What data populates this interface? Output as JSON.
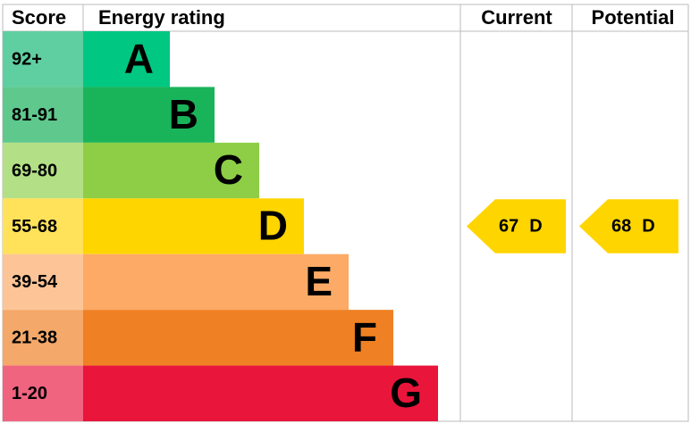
{
  "header": {
    "score": "Score",
    "rating": "Energy rating",
    "current": "Current",
    "potential": "Potential"
  },
  "bands": [
    {
      "score": "92+",
      "letter": "A",
      "color": "#00c781",
      "score_color": "#5fcfa2"
    },
    {
      "score": "81-91",
      "letter": "B",
      "color": "#19b459",
      "score_color": "#5ec88d"
    },
    {
      "score": "69-80",
      "letter": "C",
      "color": "#8dce46",
      "score_color": "#b3e086"
    },
    {
      "score": "55-68",
      "letter": "D",
      "color": "#ffd500",
      "score_color": "#ffe259"
    },
    {
      "score": "39-54",
      "letter": "E",
      "color": "#fcaa65",
      "score_color": "#fdc597"
    },
    {
      "score": "21-38",
      "letter": "F",
      "color": "#ef8023",
      "score_color": "#f4a869"
    },
    {
      "score": "1-20",
      "letter": "G",
      "color": "#e9153b",
      "score_color": "#f06480"
    }
  ],
  "current": {
    "value": 67,
    "letter": "D"
  },
  "potential": {
    "value": 68,
    "letter": "D"
  }
}
